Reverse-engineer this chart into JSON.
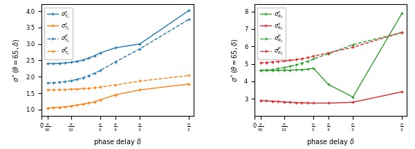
{
  "x_ticks": [
    0.0628318,
    0.3141593,
    0.6283185,
    0.7853982,
    1.0471976,
    1.5707963
  ],
  "x_tick_labels": [
    "$\\frac{\\pi}{50}$",
    "$\\frac{\\pi}{10}$",
    "$\\frac{\\pi}{5}$",
    "$\\frac{\\pi}{4}$",
    "$\\frac{\\pi}{3}$",
    "$\\frac{\\pi}{2}$"
  ],
  "x_values": [
    0.0628318,
    0.1256637,
    0.1884956,
    0.2513274,
    0.3141593,
    0.3769911,
    0.439823,
    0.5026548,
    0.5654867,
    0.6283185,
    0.7853982,
    1.0471976,
    1.5707963
  ],
  "left_ylabel": "$\\sigma^*(\\theta=65, \\delta)$",
  "right_ylabel": "$\\sigma^*(\\theta=65, \\delta)$",
  "xlabel": "phase delay $\\delta$",
  "left_ylim": [
    0.8,
    4.2
  ],
  "left_yticks": [
    1.0,
    1.5,
    2.0,
    2.5,
    3.0,
    3.5,
    4.0
  ],
  "right_ylim": [
    2.0,
    8.4
  ],
  "right_yticks": [
    3,
    4,
    5,
    6,
    7,
    8
  ],
  "left_lines": [
    {
      "label": "$\\sigma^s_{T_1}$",
      "color": "#1f77b4",
      "linestyle": "-",
      "marker": "+",
      "values": [
        2.4,
        2.4,
        2.41,
        2.42,
        2.44,
        2.47,
        2.51,
        2.57,
        2.64,
        2.73,
        2.88,
        3.0,
        4.02
      ]
    },
    {
      "label": "$\\sigma^s_{T_2}$",
      "color": "#ff7f0e",
      "linestyle": "-",
      "marker": "+",
      "values": [
        1.05,
        1.06,
        1.07,
        1.09,
        1.11,
        1.14,
        1.17,
        1.2,
        1.24,
        1.3,
        1.45,
        1.6,
        1.78
      ]
    },
    {
      "label": "$\\sigma^p_{T_1}$",
      "color": "#1f77b4",
      "linestyle": "--",
      "marker": "+",
      "values": [
        1.81,
        1.82,
        1.83,
        1.85,
        1.88,
        1.92,
        1.97,
        2.03,
        2.11,
        2.2,
        2.45,
        2.85,
        3.75
      ]
    },
    {
      "label": "$\\sigma^p_{T_2}$",
      "color": "#ff7f0e",
      "linestyle": "--",
      "marker": "+",
      "values": [
        1.6,
        1.6,
        1.61,
        1.61,
        1.62,
        1.63,
        1.64,
        1.65,
        1.67,
        1.69,
        1.75,
        1.87,
        2.04
      ]
    }
  ],
  "right_lines": [
    {
      "label": "$\\sigma^s_{R_1}$",
      "color": "#2ca02c",
      "linestyle": "-",
      "marker": "+",
      "values": [
        4.62,
        4.62,
        4.62,
        4.63,
        4.63,
        4.64,
        4.65,
        4.67,
        4.7,
        4.75,
        3.82,
        3.1,
        7.9
      ]
    },
    {
      "label": "$\\sigma^s_{R_2}$",
      "color": "#d62728",
      "linestyle": "-",
      "marker": "+",
      "values": [
        2.9,
        2.88,
        2.86,
        2.84,
        2.82,
        2.8,
        2.78,
        2.77,
        2.76,
        2.75,
        2.75,
        2.8,
        3.4
      ]
    },
    {
      "label": "$\\sigma^p_{R_1}$",
      "color": "#2ca02c",
      "linestyle": "--",
      "marker": "+",
      "values": [
        4.62,
        4.65,
        4.68,
        4.73,
        4.79,
        4.86,
        4.94,
        5.04,
        5.15,
        5.28,
        5.58,
        6.1,
        6.8
      ]
    },
    {
      "label": "$\\sigma^p_{R_2}$",
      "color": "#d62728",
      "linestyle": "--",
      "marker": "+",
      "values": [
        5.05,
        5.08,
        5.11,
        5.14,
        5.17,
        5.2,
        5.24,
        5.29,
        5.36,
        5.44,
        5.63,
        5.95,
        6.8
      ]
    }
  ]
}
